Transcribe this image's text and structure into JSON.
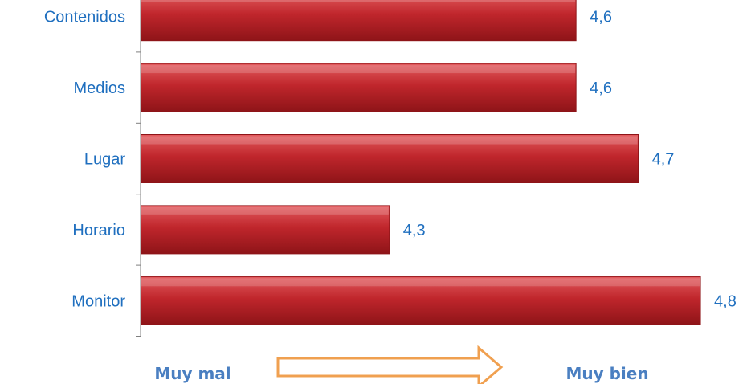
{
  "chart_data": {
    "type": "bar",
    "orientation": "horizontal",
    "categories": [
      "Contenidos",
      "Medios",
      "Lugar",
      "Horario",
      "Monitor"
    ],
    "values": [
      4.6,
      4.6,
      4.7,
      4.3,
      4.8
    ],
    "value_labels": [
      "4,6",
      "4,6",
      "4,7",
      "4,3",
      "4,8"
    ],
    "title": "",
    "xlabel": "",
    "ylabel": "",
    "xlim": [
      3.9,
      4.8
    ],
    "grid": false,
    "colors": {
      "bar": "#c0262c",
      "bar_light": "#e25b5e",
      "bar_dark": "#8e1418",
      "text": "#1f6fbf",
      "axis": "#7f7f7f"
    }
  },
  "scale": {
    "low_label": "Muy mal",
    "high_label": "Muy bien",
    "arrow_icon": "right-arrow-icon",
    "arrow_color": "#f0a050",
    "label_color": "#4a7fc1"
  }
}
